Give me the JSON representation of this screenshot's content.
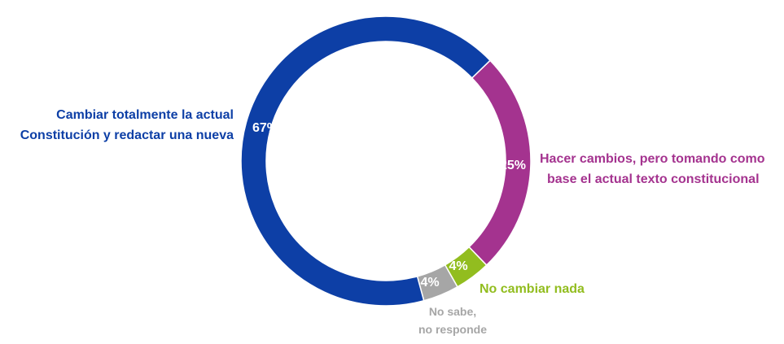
{
  "chart_data": {
    "type": "pie",
    "donut": true,
    "categories": [
      "Cambiar totalmente la actual Constitución y redactar una nueva",
      "Hacer cambios, pero tomando como base el actual texto constitucional",
      "No cambiar nada",
      "No sabe, no responde"
    ],
    "values": [
      67,
      25,
      4,
      4
    ],
    "value_labels": [
      "67%",
      "25%",
      "4%",
      "4%"
    ],
    "colors": [
      "#0d3fa6",
      "#a4338f",
      "#92bd1f",
      "#a6a6a6"
    ],
    "label_lines": [
      [
        "Cambiar totalmente la actual",
        "Constitución y redactar una nueva"
      ],
      [
        "Hacer cambios, pero tomando como",
        "base el actual texto constitucional"
      ],
      [
        "No cambiar nada"
      ],
      [
        "No sabe,",
        "no responde"
      ]
    ]
  }
}
